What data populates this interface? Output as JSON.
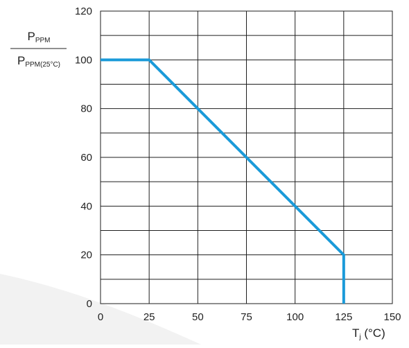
{
  "chart_data": {
    "type": "line",
    "title": "",
    "xlabel": "T",
    "xlabel_sub": "j",
    "xlabel_unit": " (°C)",
    "ylabel_numerator": "P",
    "ylabel_numerator_sub": "PPM",
    "ylabel_denominator": "P",
    "ylabel_denominator_sub": "PPM(25°C)",
    "xlim": [
      0,
      150
    ],
    "ylim": [
      0,
      120
    ],
    "x_ticks": [
      0,
      25,
      50,
      75,
      100,
      125,
      150
    ],
    "y_ticks": [
      0,
      20,
      40,
      60,
      80,
      100,
      120
    ],
    "x_grid_step": 25,
    "y_grid_step": 10,
    "grid": true,
    "series": [
      {
        "color": "#1a9ad9",
        "points": [
          [
            0,
            100
          ],
          [
            25,
            100
          ],
          [
            125,
            20
          ],
          [
            125,
            0
          ]
        ]
      }
    ]
  }
}
